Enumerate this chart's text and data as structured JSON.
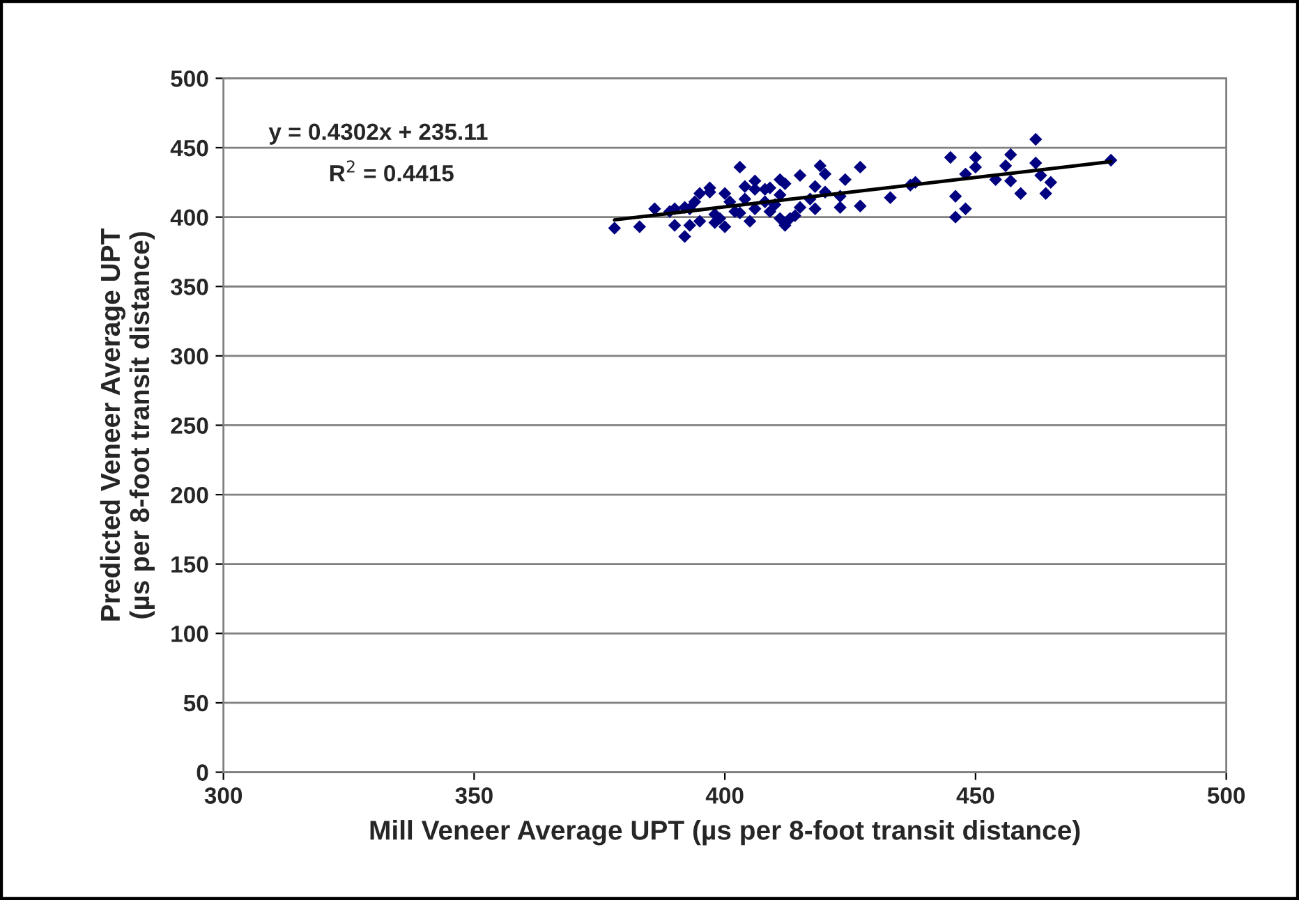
{
  "chart_data": {
    "type": "scatter",
    "xlabel": "Mill Veneer Average UPT (µs per 8-foot transit distance)",
    "ylabel": "Predicted Veneer Average UPT\n(µs per 8-foot transit distance)",
    "xlim": [
      300,
      500
    ],
    "xticks": [
      300,
      350,
      400,
      450,
      500
    ],
    "ylim": [
      0,
      500
    ],
    "yticks": [
      0,
      50,
      100,
      150,
      200,
      250,
      300,
      350,
      400,
      450,
      500
    ],
    "grid": "y",
    "marker": "diamond",
    "series": [
      {
        "color": "#000080",
        "x": [
          378,
          383,
          386,
          389,
          390,
          390,
          392,
          392,
          393,
          393,
          394,
          395,
          395,
          397,
          397,
          398,
          398,
          399,
          400,
          400,
          401,
          402,
          403,
          403,
          404,
          404,
          405,
          406,
          406,
          406,
          408,
          408,
          409,
          409,
          410,
          411,
          411,
          411,
          412,
          412,
          413,
          414,
          415,
          415,
          417,
          418,
          418,
          419,
          420,
          420,
          423,
          423,
          424,
          427,
          427,
          433,
          437,
          438,
          445,
          446,
          446,
          448,
          448,
          450,
          450,
          454,
          456,
          457,
          457,
          459,
          462,
          462,
          463,
          464,
          465,
          477
        ],
        "values": [
          392,
          393,
          406,
          404,
          406,
          394,
          407,
          386,
          394,
          406,
          411,
          417,
          397,
          421,
          418,
          402,
          396,
          399,
          417,
          393,
          411,
          404,
          436,
          403,
          422,
          413,
          397,
          426,
          406,
          420,
          411,
          420,
          421,
          404,
          409,
          427,
          416,
          399,
          424,
          394,
          399,
          401,
          430,
          407,
          413,
          406,
          422,
          437,
          431,
          418,
          415,
          407,
          427,
          436,
          408,
          414,
          423,
          425,
          443,
          415,
          400,
          406,
          431,
          436,
          443,
          427,
          437,
          445,
          426,
          417,
          456,
          439,
          430,
          417,
          425,
          441
        ]
      },
      {
        "type": "line",
        "color": "#000000",
        "line_style": "solid",
        "marker": "none",
        "x": [
          378,
          477
        ],
        "values": [
          398,
          440
        ]
      }
    ],
    "annotations": [
      "y = 0.4302x + 235.11",
      "R$^{2}$ = 0.4415"
    ]
  }
}
